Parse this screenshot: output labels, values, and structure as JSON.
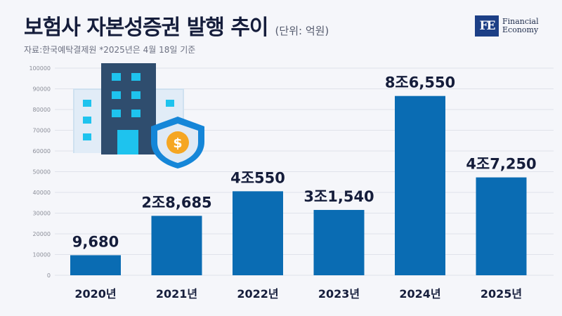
{
  "title": "보험사 자본성증권 발행 추이",
  "unit": "(단위: 억원)",
  "source": "자료:한국예탁결제원 *2025년은 4월 18일 기준",
  "logo": {
    "mark": "FE",
    "line1": "Financial",
    "line2": "Economy"
  },
  "chart_data": {
    "type": "bar",
    "categories": [
      "2020년",
      "2021년",
      "2022년",
      "2023년",
      "2024년",
      "2025년"
    ],
    "values": [
      9680,
      28685,
      40550,
      31540,
      86550,
      47250
    ],
    "data_labels": [
      "9,680",
      "2조8,685",
      "4조550",
      "3조1,540",
      "8조6,550",
      "4조7,250"
    ],
    "yticks": [
      "0",
      "10000",
      "20000",
      "30000",
      "40000",
      "50000",
      "60000",
      "70000",
      "80000",
      "90000",
      "100000"
    ],
    "ylim": [
      0,
      100000
    ],
    "grid": true,
    "bar_color": "#0a6cb3"
  }
}
